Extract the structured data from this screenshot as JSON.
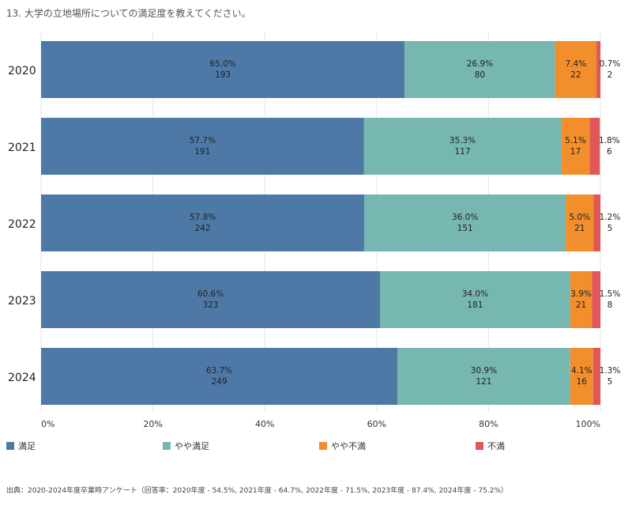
{
  "title": "13. 大学の立地場所についての満足度を教えてください。",
  "source": "出典：2020-2024年度卒業時アンケート（回答率：2020年度 - 54.5%, 2021年度 - 64.7%, 2022年度 - 71.5%, 2023年度 - 87.4%, 2024年度 - 75.2%）",
  "colors": {
    "satisfied": "#4e79a7",
    "somewhat_satisfied": "#76b7b2",
    "somewhat_dissatisfied": "#f28e2b",
    "dissatisfied": "#e15759",
    "gridline": "#e6e6e6"
  },
  "legend": [
    {
      "label": "満足",
      "color": "#4e79a7"
    },
    {
      "label": "やや満足",
      "color": "#76b7b2"
    },
    {
      "label": "やや不満",
      "color": "#f28e2b"
    },
    {
      "label": "不満",
      "color": "#e15759"
    }
  ],
  "chart_data": {
    "type": "bar",
    "orientation": "horizontal",
    "stacked": true,
    "normalized": true,
    "title": "13. 大学の立地場所についての満足度を教えてください。",
    "categories": [
      "2020",
      "2021",
      "2022",
      "2023",
      "2024"
    ],
    "series": [
      {
        "name": "満足",
        "percent_labels": [
          "65.0%",
          "57.7%",
          "57.8%",
          "60.6%",
          "63.7%"
        ],
        "percent": [
          65.0,
          57.7,
          57.8,
          60.6,
          63.7
        ],
        "counts": [
          193,
          191,
          242,
          323,
          249
        ]
      },
      {
        "name": "やや満足",
        "percent_labels": [
          "26.9%",
          "35.3%",
          "36.0%",
          "34.0%",
          "30.9%"
        ],
        "percent": [
          26.9,
          35.3,
          36.0,
          34.0,
          30.9
        ],
        "counts": [
          80,
          117,
          151,
          181,
          121
        ]
      },
      {
        "name": "やや不満",
        "percent_labels": [
          "7.4%",
          "5.1%",
          "5.0%",
          "3.9%",
          "4.1%"
        ],
        "percent": [
          7.4,
          5.1,
          5.0,
          3.9,
          4.1
        ],
        "counts": [
          22,
          17,
          21,
          21,
          16
        ]
      },
      {
        "name": "不満",
        "percent_labels": [
          "0.7%",
          "1.8%",
          "1.2%",
          "1.5%",
          "1.3%"
        ],
        "percent": [
          0.7,
          1.8,
          1.2,
          1.5,
          1.3
        ],
        "counts": [
          2,
          6,
          5,
          8,
          5
        ]
      }
    ],
    "xlim": [
      0,
      100
    ],
    "xticks": [
      0,
      20,
      40,
      60,
      80,
      100
    ],
    "xtick_labels": [
      "0%",
      "20%",
      "40%",
      "60%",
      "80%",
      "100%"
    ],
    "grid": true,
    "legend_position": "bottom"
  }
}
